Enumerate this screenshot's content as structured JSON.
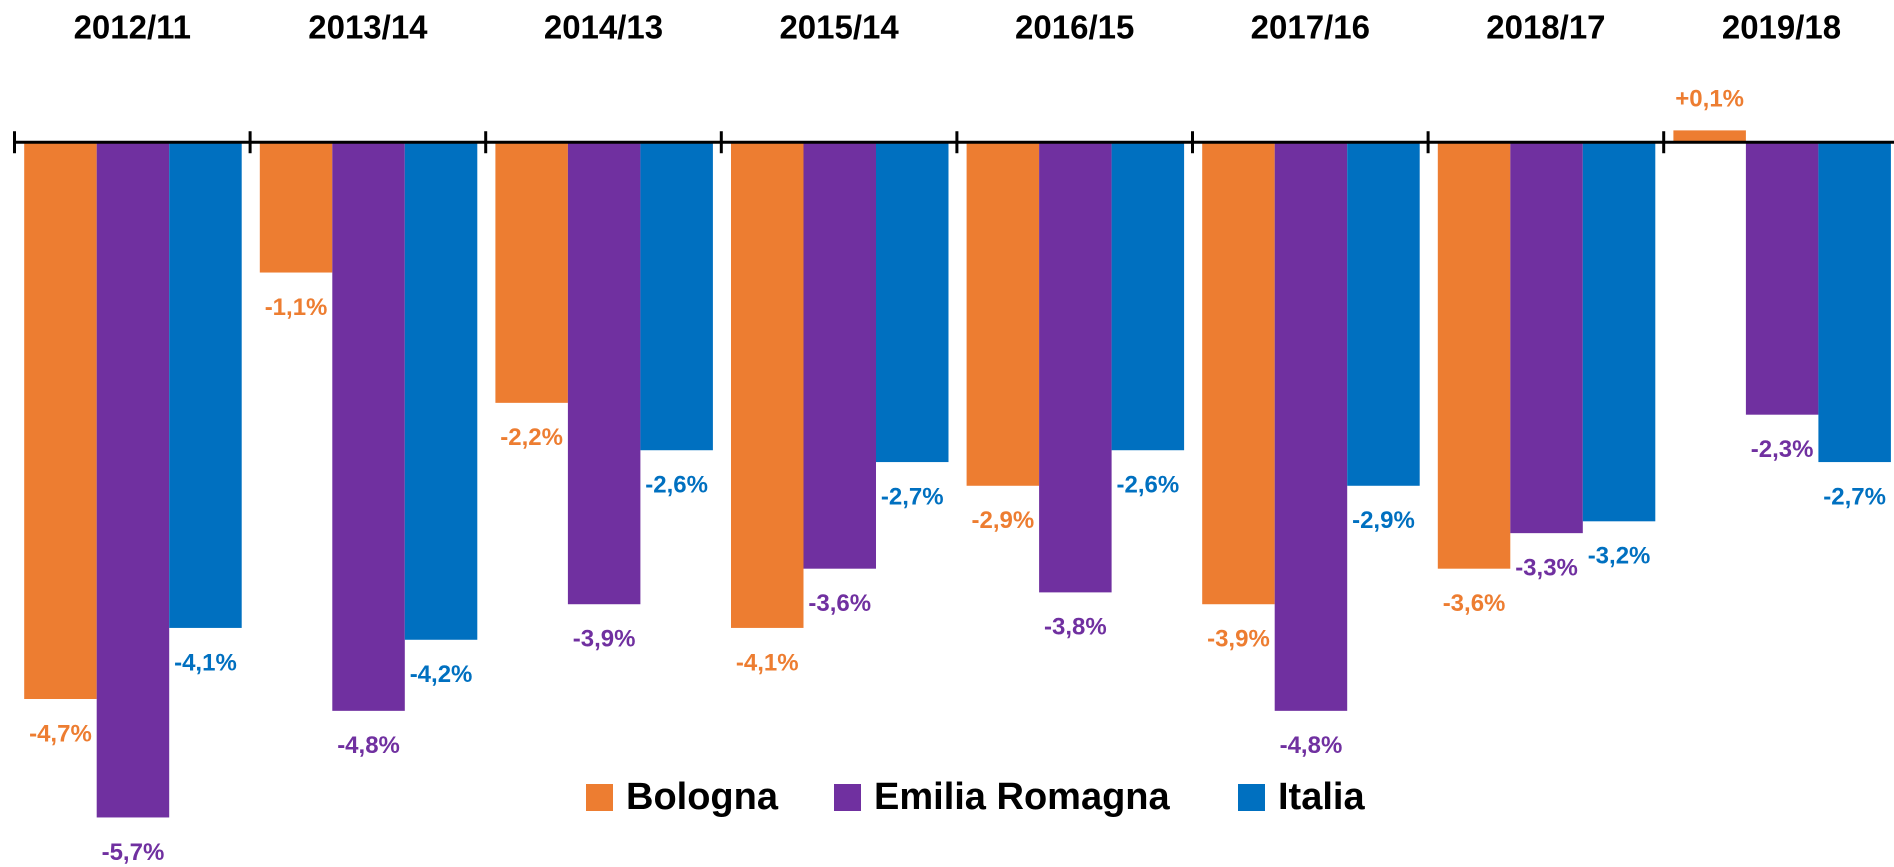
{
  "chart_data": {
    "type": "bar",
    "categories": [
      "2012/11",
      "2013/14",
      "2014/13",
      "2015/14",
      "2016/15",
      "2017/16",
      "2018/17",
      "2019/18"
    ],
    "series": [
      {
        "name": "Bologna",
        "color": "#ED7D31",
        "values": [
          -4.7,
          -1.1,
          -2.2,
          -4.1,
          -2.9,
          -3.9,
          -3.6,
          0.1
        ],
        "value_labels": [
          "-4,7%",
          "-1,1%",
          "-2,2%",
          "-4,1%",
          "-2,9%",
          "-3,9%",
          "-3,6%",
          "+0,1%"
        ]
      },
      {
        "name": "Emilia Romagna",
        "color": "#7030A0",
        "values": [
          -5.7,
          -4.8,
          -3.9,
          -3.6,
          -3.8,
          -4.8,
          -3.3,
          -2.3
        ],
        "value_labels": [
          "-5,7%",
          "-4,8%",
          "-3,9%",
          "-3,6%",
          "-3,8%",
          "-4,8%",
          "-3,3%",
          "-2,3%"
        ]
      },
      {
        "name": "Italia",
        "color": "#0070C0",
        "values": [
          -4.1,
          -4.2,
          -2.6,
          -2.7,
          -2.6,
          -2.9,
          -3.2,
          -2.7
        ],
        "value_labels": [
          "-4,1%",
          "-4,2%",
          "-2,6%",
          "-2,7%",
          "-2,6%",
          "-2,9%",
          "-3,2%",
          "-2,7%"
        ]
      }
    ],
    "ylim": [
      -6,
      0.5
    ]
  }
}
